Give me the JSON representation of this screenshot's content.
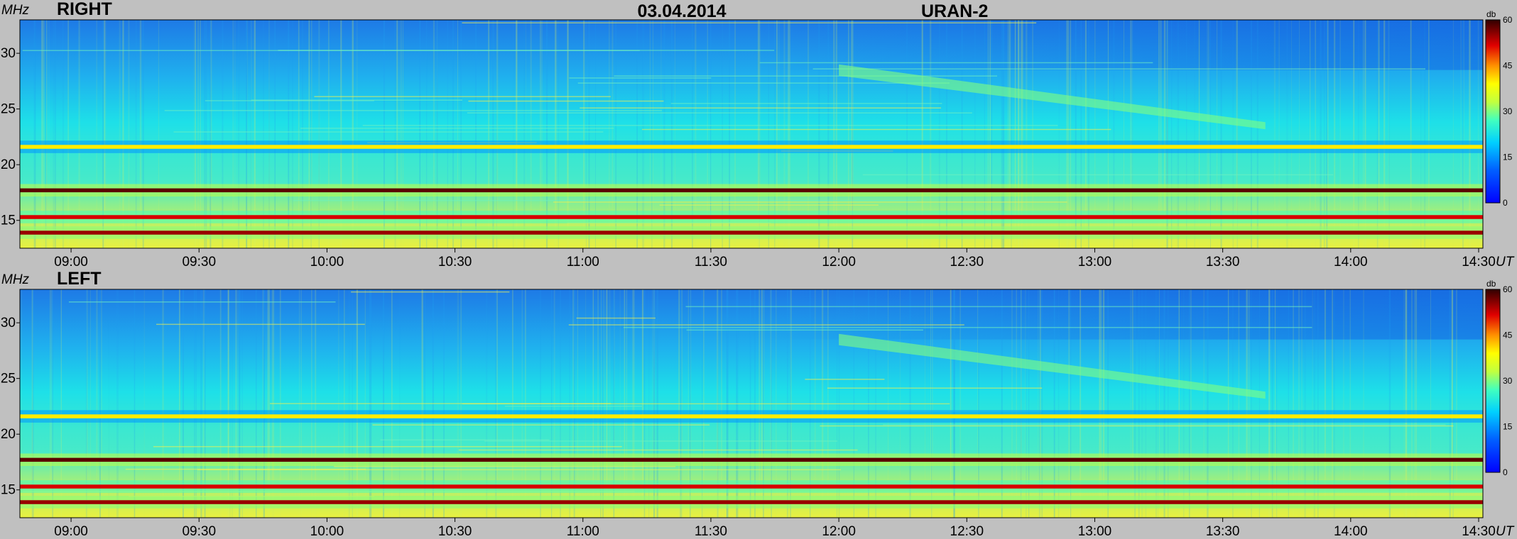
{
  "header": {
    "date": "03.04.2014",
    "instrument": "URAN-2"
  },
  "chart_data": [
    {
      "type": "heatmap",
      "title": "RIGHT",
      "xlabel": "UT",
      "ylabel": "MHz",
      "xticks": [
        "09:00",
        "09:30",
        "10:00",
        "10:30",
        "11:00",
        "11:30",
        "12:00",
        "12:30",
        "13:00",
        "13:30",
        "14:00",
        "14:30"
      ],
      "yticks": [
        15,
        20,
        25,
        30
      ],
      "xlim": [
        "08:48",
        "14:31"
      ],
      "ylim": [
        12.5,
        33
      ],
      "colorbar": {
        "label": "db",
        "ticks": [
          0,
          15,
          30,
          45,
          60
        ],
        "range": [
          0,
          60
        ]
      },
      "features": [
        {
          "kind": "band",
          "freq_mhz": 17.7,
          "level_db": 58
        },
        {
          "kind": "band",
          "freq_mhz": 15.3,
          "level_db": 52
        },
        {
          "kind": "band",
          "freq_mhz": 13.9,
          "level_db": 55
        },
        {
          "kind": "band",
          "freq_mhz": 21.6,
          "level_db": 40
        },
        {
          "kind": "drift",
          "start_time": "12:00",
          "start_freq_mhz": 28.5,
          "end_time": "13:40",
          "end_freq_mhz": 23.5,
          "level_db": 30
        }
      ]
    },
    {
      "type": "heatmap",
      "title": "LEFT",
      "xlabel": "UT",
      "ylabel": "MHz",
      "xticks": [
        "09:00",
        "09:30",
        "10:00",
        "10:30",
        "11:00",
        "11:30",
        "12:00",
        "12:30",
        "13:00",
        "13:30",
        "14:00",
        "14:30"
      ],
      "yticks": [
        15,
        20,
        25,
        30
      ],
      "xlim": [
        "08:48",
        "14:31"
      ],
      "ylim": [
        12.5,
        33
      ],
      "colorbar": {
        "label": "db",
        "ticks": [
          0,
          15,
          30,
          45,
          60
        ],
        "range": [
          0,
          60
        ]
      },
      "features": [
        {
          "kind": "band",
          "freq_mhz": 17.7,
          "level_db": 58
        },
        {
          "kind": "band",
          "freq_mhz": 15.3,
          "level_db": 52
        },
        {
          "kind": "band",
          "freq_mhz": 13.9,
          "level_db": 55
        },
        {
          "kind": "band",
          "freq_mhz": 21.6,
          "level_db": 40
        },
        {
          "kind": "drift",
          "start_time": "12:00",
          "start_freq_mhz": 28.5,
          "end_time": "13:40",
          "end_freq_mhz": 23.5,
          "level_db": 30
        }
      ]
    }
  ]
}
